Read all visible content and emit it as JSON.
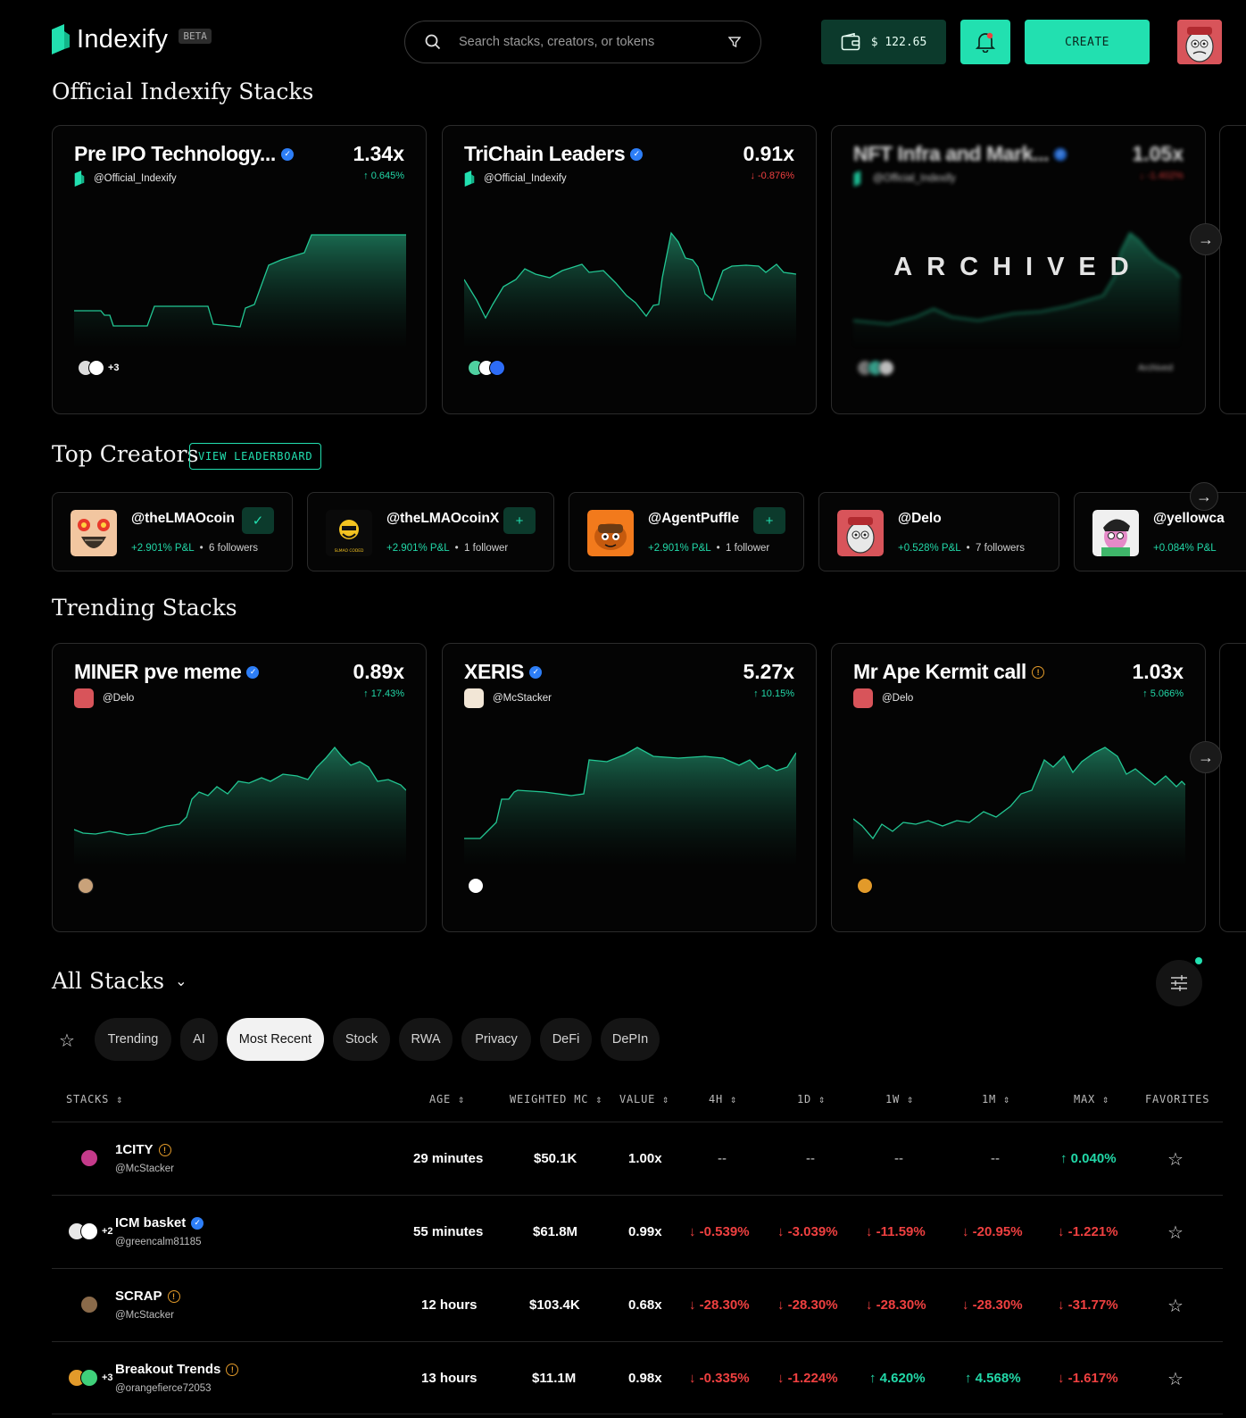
{
  "header": {
    "logo_text": "Indexify",
    "beta": "BETA",
    "search_placeholder": "Search stacks, creators, or tokens",
    "wallet_balance": "$ 122.65",
    "create_label": "CREATE"
  },
  "official": {
    "title": "Official Indexify Stacks",
    "cards": [
      {
        "name": "Pre IPO Technology...",
        "creator": "@Official_Indexify",
        "mult": "1.34x",
        "change": "0.645%",
        "dir": "up",
        "extra_tokens": "+3",
        "archived": false
      },
      {
        "name": "TriChain Leaders",
        "creator": "@Official_Indexify",
        "mult": "0.91x",
        "change": "-0.876%",
        "dir": "down",
        "extra_tokens": "",
        "archived": false
      },
      {
        "name": "NFT Infra and Mark...",
        "creator": "@Official_Indexify",
        "mult": "1.05x",
        "change": "-1.402%",
        "dir": "down",
        "extra_tokens": "",
        "archived": true,
        "archived_label": "ARCHIVED",
        "archived_tag": "Archived"
      }
    ]
  },
  "creators": {
    "title": "Top Creators",
    "leaderboard": "VIEW LEADERBOARD",
    "items": [
      {
        "handle": "@theLMAOcoin",
        "pnl": "+2.901% P&L",
        "followers": "6 followers",
        "following": true
      },
      {
        "handle": "@theLMAOcoinX",
        "pnl": "+2.901% P&L",
        "followers": "1 follower",
        "following": false,
        "avatar_caption": "SLMAO CODED"
      },
      {
        "handle": "@AgentPuffle",
        "pnl": "+2.901% P&L",
        "followers": "1 follower",
        "following": false
      },
      {
        "handle": "@Delo",
        "pnl": "+0.528% P&L",
        "followers": "7 followers",
        "following": null
      },
      {
        "handle": "@yellowca",
        "pnl": "+0.084% P&L",
        "followers": "",
        "following": null
      }
    ]
  },
  "trending": {
    "title": "Trending Stacks",
    "cards": [
      {
        "name": "MINER pve meme",
        "creator": "@Delo",
        "mult": "0.89x",
        "change": "17.43%",
        "dir": "up",
        "badge": "verified"
      },
      {
        "name": "XERIS",
        "creator": "@McStacker",
        "mult": "5.27x",
        "change": "10.15%",
        "dir": "up",
        "badge": "verified"
      },
      {
        "name": "Mr Ape Kermit call",
        "creator": "@Delo",
        "mult": "1.03x",
        "change": "5.066%",
        "dir": "up",
        "badge": "warn"
      }
    ]
  },
  "all_stacks": {
    "title": "All Stacks",
    "filters": [
      "Trending",
      "AI",
      "Most Recent",
      "Stock",
      "RWA",
      "Privacy",
      "DeFi",
      "DePIn"
    ],
    "active_filter": "Most Recent",
    "columns": [
      "STACKS",
      "AGE",
      "WEIGHTED MC",
      "VALUE",
      "4H",
      "1D",
      "1W",
      "1M",
      "MAX",
      "FAVORITES"
    ],
    "rows": [
      {
        "name": "1CITY",
        "badge": "warn",
        "creator": "@McStacker",
        "age": "29 minutes",
        "mc": "$50.1K",
        "value": "1.00x",
        "h4": "--",
        "d1": "--",
        "w1": "--",
        "m1": "--",
        "max": "0.040%",
        "max_dir": "up",
        "extra": ""
      },
      {
        "name": "ICM basket",
        "badge": "verified",
        "creator": "@greencalm81185",
        "age": "55 minutes",
        "mc": "$61.8M",
        "value": "0.99x",
        "h4": "-0.539%",
        "d1": "-3.039%",
        "w1": "-11.59%",
        "m1": "-20.95%",
        "max": "-1.221%",
        "extra": "+2"
      },
      {
        "name": "SCRAP",
        "badge": "warn",
        "creator": "@McStacker",
        "age": "12 hours",
        "mc": "$103.4K",
        "value": "0.68x",
        "h4": "-28.30%",
        "d1": "-28.30%",
        "w1": "-28.30%",
        "m1": "-28.30%",
        "max": "-31.77%",
        "extra": ""
      },
      {
        "name": "Breakout Trends",
        "badge": "warn",
        "creator": "@orangefierce72053",
        "age": "13 hours",
        "mc": "$11.1M",
        "value": "0.98x",
        "h4": "-0.335%",
        "d1": "-1.224%",
        "w1": "4.620%",
        "m1": "4.568%",
        "max": "-1.617%",
        "extra": "+3"
      }
    ]
  },
  "colors": {
    "accent": "#22e0b0",
    "up": "#22d8a8",
    "down": "#ef4040",
    "wallet_bg": "#0c3a2c"
  }
}
